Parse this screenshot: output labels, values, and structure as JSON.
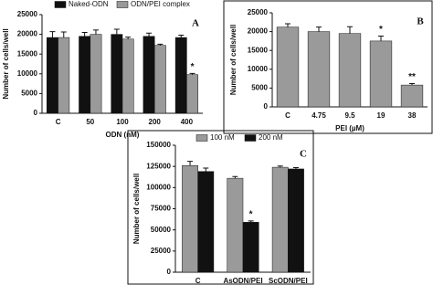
{
  "chart_data": [
    {
      "type": "bar",
      "panel_label": "A",
      "x_label": "ODN (nM)",
      "y_label": "Number of cells/well",
      "categories": [
        "C",
        "50",
        "100",
        "200",
        "400"
      ],
      "series": [
        {
          "name": "Naked-ODN",
          "color": "#111111",
          "values": [
            19200,
            19500,
            20000,
            19500,
            19200
          ],
          "errors": [
            1500,
            1000,
            1300,
            800,
            600
          ]
        },
        {
          "name": "ODN/PEI complex",
          "color": "#9a9a9a",
          "values": [
            19200,
            20000,
            18800,
            17200,
            9800
          ],
          "errors": [
            1400,
            1100,
            500,
            300,
            300
          ]
        }
      ],
      "ylim": [
        0,
        25000
      ],
      "yticks": [
        0,
        5000,
        10000,
        15000,
        20000,
        25000
      ],
      "annotations": [
        "*"
      ],
      "legend": "top"
    },
    {
      "type": "bar",
      "panel_label": "B",
      "x_label": "PEI (µM)",
      "y_label": "Number of cells/well",
      "categories": [
        "C",
        "4.75",
        "9.5",
        "19",
        "38"
      ],
      "series": [
        {
          "name": null,
          "color": "#9a9a9a",
          "values": [
            21200,
            20000,
            19500,
            17500,
            5800
          ],
          "errors": [
            900,
            1200,
            1800,
            1300,
            400
          ]
        }
      ],
      "ylim": [
        0,
        25000
      ],
      "yticks": [
        0,
        5000,
        10000,
        15000,
        20000,
        25000
      ],
      "annotations": [
        "*",
        "**"
      ]
    },
    {
      "type": "bar",
      "panel_label": "C",
      "x_label": null,
      "y_label": "Number of cells/well",
      "categories": [
        "C",
        "AsODN/PEI",
        "ScODN/PEI"
      ],
      "series": [
        {
          "name": "100 nM",
          "color": "#9a9a9a",
          "values": [
            126000,
            111000,
            124000
          ],
          "errors": [
            5000,
            2000,
            1500
          ]
        },
        {
          "name": "200 nM",
          "color": "#111111",
          "values": [
            119000,
            59000,
            122000
          ],
          "errors": [
            4000,
            1500,
            1500
          ]
        }
      ],
      "ylim": [
        0,
        150000
      ],
      "yticks": [
        0,
        25000,
        50000,
        75000,
        100000,
        125000,
        150000
      ],
      "annotations": [
        "*"
      ],
      "legend": "top"
    }
  ]
}
